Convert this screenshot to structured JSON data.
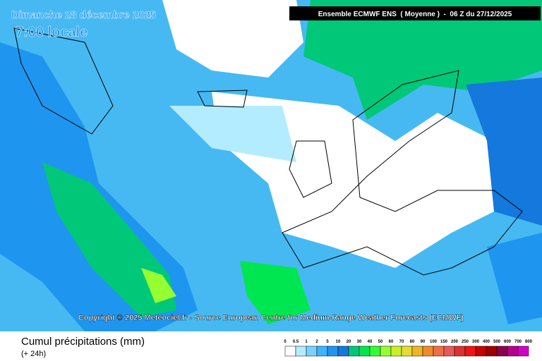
{
  "header": {
    "date": "Dimanche 28 décembre 2025",
    "time": "7:00 locale",
    "model": "Ensemble ECMWF ENS  ( Moyenne )  -  06 Z du 27/12/2025"
  },
  "copyright": "Copyright © 2025 Meteociel.fr - Source European Centre for Medium-Range Weather Forecasts (ECMWF)",
  "legend": {
    "title": "Cumul précipitations (mm)",
    "subtitle": "(+ 24h)",
    "labels": [
      "0",
      "0.5",
      "1",
      "2",
      "5",
      "10",
      "20",
      "30",
      "40",
      "50",
      "60",
      "70",
      "80",
      "90",
      "100",
      "150",
      "200",
      "250",
      "300",
      "400",
      "500",
      "600",
      "700",
      "800"
    ],
    "colors": [
      "#ffffff",
      "#b4ecff",
      "#78d2ff",
      "#3cb4ff",
      "#1e96f0",
      "#1478dc",
      "#00c878",
      "#00e650",
      "#32ff32",
      "#96ff32",
      "#c8f028",
      "#e6dc32",
      "#f0b428",
      "#f08c28",
      "#f06e46",
      "#e65a5a",
      "#dc3232",
      "#f01414",
      "#c80000",
      "#a00000",
      "#8c0050",
      "#b4008c",
      "#d200c8"
    ]
  }
}
